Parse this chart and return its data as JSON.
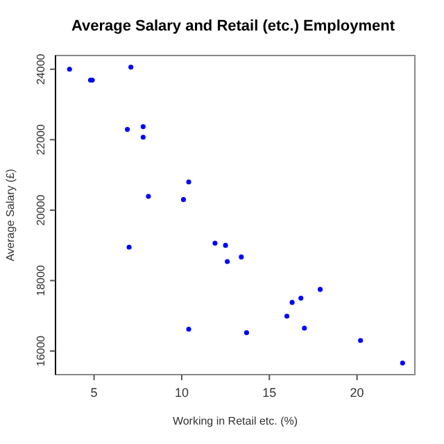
{
  "chart_data": {
    "type": "scatter",
    "title": "Average Salary and Retail (etc.) Employment",
    "xlabel": "Working in Retail etc. (%)",
    "ylabel": "Average Salary (£)",
    "xlim": [
      2.8,
      23.3
    ],
    "ylim": [
      15330,
      24390
    ],
    "xticks": [
      5,
      10,
      15,
      20
    ],
    "yticks": [
      16000,
      18000,
      20000,
      22000,
      24000
    ],
    "grid": false,
    "marker": "circle",
    "series": [
      {
        "color": "#0000ff",
        "x": [
          3.6,
          4.8,
          4.9,
          7.1,
          6.9,
          7.8,
          7.8,
          10.4,
          8.1,
          10.1,
          7.0,
          11.9,
          10.4,
          12.5,
          12.6,
          13.4,
          13.7,
          16.0,
          16.3,
          16.8,
          17.9,
          17.0,
          20.2,
          22.6
        ],
        "values": [
          24000,
          23690,
          23690,
          24060,
          22290,
          22370,
          22070,
          20800,
          20390,
          20300,
          18950,
          19060,
          16620,
          19000,
          18540,
          18670,
          16520,
          16990,
          17380,
          17500,
          17750,
          16650,
          16300,
          15660
        ]
      }
    ]
  }
}
